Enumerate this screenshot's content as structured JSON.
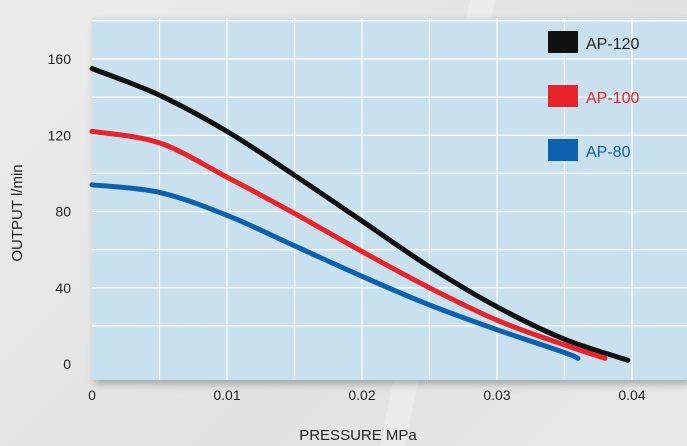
{
  "chart_data": {
    "type": "line",
    "title": "",
    "xlabel": "PRESSURE MPa",
    "ylabel": "OUTPUT l/min",
    "xlim": [
      0,
      0.045
    ],
    "ylim": [
      -5,
      180
    ],
    "x_ticks": [
      0,
      0.01,
      0.02,
      0.03,
      0.04
    ],
    "x_tick_labels": [
      "0",
      "0.01",
      "0.02",
      "0.03",
      "0.04"
    ],
    "y_ticks": [
      0,
      40,
      80,
      120,
      160
    ],
    "y_tick_labels": [
      "0",
      "40",
      "80",
      "120",
      "160"
    ],
    "grid": true,
    "legend_position": "top-right",
    "plot_background": "#c9e0ee",
    "series": [
      {
        "name": "AP-120",
        "color": "#111111",
        "label_color": "#222222",
        "points": [
          [
            0,
            155
          ],
          [
            0.005,
            141
          ],
          [
            0.01,
            122
          ],
          [
            0.015,
            99
          ],
          [
            0.02,
            75
          ],
          [
            0.025,
            51
          ],
          [
            0.03,
            30
          ],
          [
            0.035,
            13
          ],
          [
            0.0397,
            2
          ]
        ]
      },
      {
        "name": "AP-100",
        "color": "#e8232a",
        "label_color": "#e8232a",
        "points": [
          [
            0,
            122
          ],
          [
            0.005,
            116
          ],
          [
            0.01,
            98
          ],
          [
            0.015,
            79
          ],
          [
            0.02,
            59
          ],
          [
            0.025,
            40
          ],
          [
            0.03,
            23
          ],
          [
            0.035,
            10
          ],
          [
            0.038,
            3
          ]
        ]
      },
      {
        "name": "AP-80",
        "color": "#0b61ad",
        "label_color": "#0b61ad",
        "points": [
          [
            0,
            94
          ],
          [
            0.005,
            90
          ],
          [
            0.01,
            78
          ],
          [
            0.015,
            62
          ],
          [
            0.02,
            46
          ],
          [
            0.025,
            31
          ],
          [
            0.03,
            18
          ],
          [
            0.035,
            6
          ],
          [
            0.036,
            3
          ]
        ]
      }
    ]
  }
}
